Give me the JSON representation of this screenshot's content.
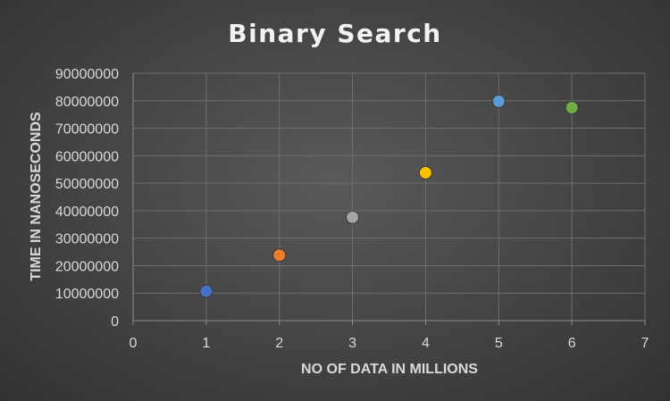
{
  "chart_data": {
    "type": "scatter",
    "title": "Binary Search",
    "xlabel": "NO OF DATA IN MILLIONS",
    "ylabel": "TIME IN NANOSECONDS",
    "xlim": [
      0,
      7
    ],
    "ylim": [
      0,
      90000000
    ],
    "x_ticks": [
      "0",
      "1",
      "2",
      "3",
      "4",
      "5",
      "6",
      "7"
    ],
    "y_ticks": [
      "0",
      "10000000",
      "20000000",
      "30000000",
      "40000000",
      "50000000",
      "60000000",
      "70000000",
      "80000000",
      "90000000"
    ],
    "grid": true,
    "legend": "none",
    "points": [
      {
        "x": 1,
        "y": 10700000,
        "color": "#4472c4"
      },
      {
        "x": 2,
        "y": 23800000,
        "color": "#ed7d31"
      },
      {
        "x": 3,
        "y": 37600000,
        "color": "#a5a5a5"
      },
      {
        "x": 4,
        "y": 53800000,
        "color": "#ffc000"
      },
      {
        "x": 5,
        "y": 79800000,
        "color": "#5b9bd5"
      },
      {
        "x": 6,
        "y": 77500000,
        "color": "#70ad47"
      }
    ]
  }
}
